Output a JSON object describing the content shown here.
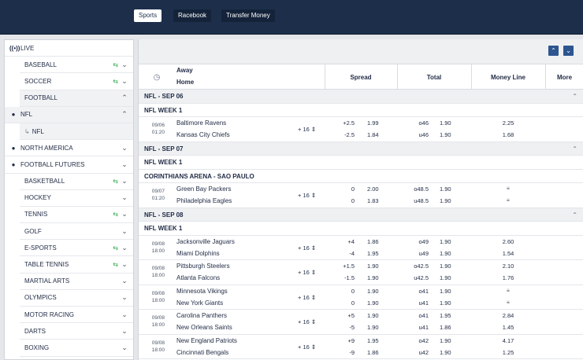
{
  "nav": {
    "sports": "Sports",
    "racebook": "Racebook",
    "transfer": "Transfer Money"
  },
  "sidebar": {
    "live": "LIVE",
    "items": [
      {
        "label": "BASEBALL",
        "swap": true
      },
      {
        "label": "SOCCER",
        "swap": true
      },
      {
        "label": "FOOTBALL",
        "expanded": true
      },
      {
        "label": "NFL",
        "expanded": true
      },
      {
        "label": "NFL"
      },
      {
        "label": "NORTH AMERICA"
      },
      {
        "label": "FOOTBALL FUTURES"
      },
      {
        "label": "BASKETBALL",
        "swap": true
      },
      {
        "label": "HOCKEY"
      },
      {
        "label": "TENNIS",
        "swap": true
      },
      {
        "label": "GOLF"
      },
      {
        "label": "E-SPORTS",
        "swap": true
      },
      {
        "label": "TABLE TENNIS",
        "swap": true
      },
      {
        "label": "MARTIAL ARTS"
      },
      {
        "label": "OLYMPICS"
      },
      {
        "label": "MOTOR RACING"
      },
      {
        "label": "DARTS"
      },
      {
        "label": "BOXING"
      }
    ]
  },
  "header": {
    "away": "Away",
    "home": "Home",
    "spread": "Spread",
    "total": "Total",
    "moneyline": "Money Line",
    "more": "More"
  },
  "sections": [
    {
      "date": "NFL - SEP 06",
      "groups": [
        {
          "name": "NFL WEEK 1",
          "events": [
            {
              "date": "09/06",
              "time": "01:20",
              "away": "Baltimore Ravens",
              "home": "Kansas City Chiefs",
              "more": "+ 16",
              "sa": "+2.5",
              "sao": "1.99",
              "sh": "-2.5",
              "sho": "1.84",
              "ta": "o46",
              "tao": "1.90",
              "th": "u46",
              "tho": "1.90",
              "ma": "2.25",
              "mh": "1.68"
            }
          ]
        }
      ]
    },
    {
      "date": "NFL - SEP 07",
      "groups": [
        {
          "name": "NFL WEEK 1",
          "events": []
        },
        {
          "name": "CORINTHIANS ARENA - SAO PAULO",
          "events": [
            {
              "date": "09/07",
              "time": "01:20",
              "away": "Green Bay Packers",
              "home": "Philadelphia Eagles",
              "more": "+ 16",
              "sa": "0",
              "sao": "2.00",
              "sh": "0",
              "sho": "1.83",
              "ta": "o48.5",
              "tao": "1.90",
              "th": "u48.5",
              "tho": "1.90",
              "ma": "",
              "mh": ""
            }
          ]
        }
      ]
    },
    {
      "date": "NFL - SEP 08",
      "groups": [
        {
          "name": "NFL WEEK 1",
          "events": [
            {
              "date": "09/08",
              "time": "18:00",
              "away": "Jacksonville Jaguars",
              "home": "Miami Dolphins",
              "more": "+ 16",
              "sa": "+4",
              "sao": "1.86",
              "sh": "-4",
              "sho": "1.95",
              "ta": "o49",
              "tao": "1.90",
              "th": "u49",
              "tho": "1.90",
              "ma": "2.60",
              "mh": "1.54"
            },
            {
              "date": "09/08",
              "time": "18:00",
              "away": "Pittsburgh Steelers",
              "home": "Atlanta Falcons",
              "more": "+ 16",
              "sa": "+1.5",
              "sao": "1.90",
              "sh": "-1.5",
              "sho": "1.90",
              "ta": "o42.5",
              "tao": "1.90",
              "th": "u42.5",
              "tho": "1.90",
              "ma": "2.10",
              "mh": "1.76"
            },
            {
              "date": "09/08",
              "time": "18:00",
              "away": "Minnesota Vikings",
              "home": "New York Giants",
              "more": "+ 16",
              "sa": "0",
              "sao": "1.90",
              "sh": "0",
              "sho": "1.90",
              "ta": "o41",
              "tao": "1.90",
              "th": "u41",
              "tho": "1.90",
              "ma": "",
              "mh": ""
            },
            {
              "date": "09/08",
              "time": "18:00",
              "away": "Carolina Panthers",
              "home": "New Orleans Saints",
              "more": "+ 16",
              "sa": "+5",
              "sao": "1.90",
              "sh": "-5",
              "sho": "1.90",
              "ta": "o41",
              "tao": "1.95",
              "th": "u41",
              "tho": "1.86",
              "ma": "2.84",
              "mh": "1.45"
            },
            {
              "date": "09/08",
              "time": "18:00",
              "away": "New England Patriots",
              "home": "Cincinnati Bengals",
              "more": "+ 16",
              "sa": "+9",
              "sao": "1.95",
              "sh": "-9",
              "sho": "1.86",
              "ta": "o42",
              "tao": "1.90",
              "th": "u42",
              "tho": "1.90",
              "ma": "4.17",
              "mh": "1.25"
            }
          ]
        }
      ]
    }
  ]
}
